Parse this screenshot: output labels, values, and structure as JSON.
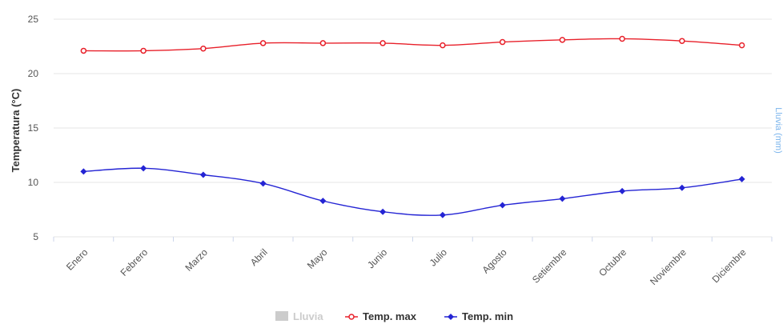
{
  "chart_data": {
    "type": "line",
    "title": "",
    "categories": [
      "Enero",
      "Febrero",
      "Marzo",
      "Abril",
      "Mayo",
      "Junio",
      "Julio",
      "Agosto",
      "Setiembre",
      "Octubre",
      "Noviembre",
      "Diciembre"
    ],
    "ylabel": "Temperatura (°C)",
    "secondary_ylabel": "Lluvia (mm)",
    "ylim": [
      5,
      25
    ],
    "yticks": [
      "5",
      "10",
      "15",
      "20",
      "25"
    ],
    "grid": true,
    "legend_position": "bottom-center",
    "legend_hidden_label": "Lluvia",
    "series": [
      {
        "name": "Temp. max",
        "color": "#e8202a",
        "marker": "circle",
        "values": [
          22.1,
          22.1,
          22.3,
          22.8,
          22.8,
          22.8,
          22.6,
          22.9,
          23.1,
          23.2,
          23.0,
          22.6
        ]
      },
      {
        "name": "Temp. min",
        "color": "#2424d4",
        "marker": "diamond",
        "values": [
          11.0,
          11.3,
          10.7,
          9.9,
          8.3,
          7.3,
          7.0,
          7.9,
          8.5,
          9.2,
          9.5,
          10.3
        ]
      }
    ]
  }
}
